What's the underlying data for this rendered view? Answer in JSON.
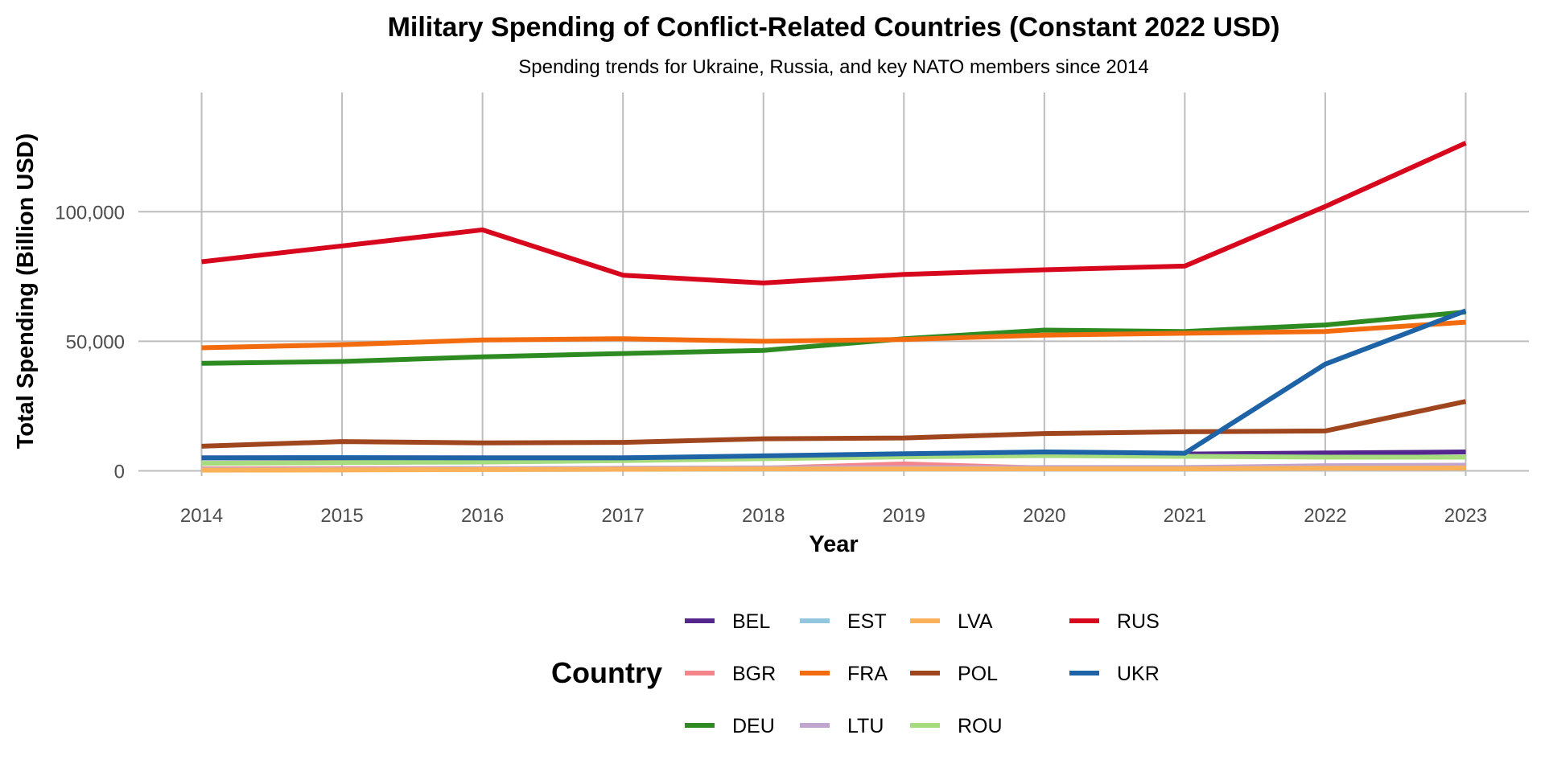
{
  "chart_data": {
    "type": "line",
    "title": "Military Spending of Conflict-Related Countries (Constant 2022 USD)",
    "subtitle": "Spending trends for Ukraine, Russia, and key NATO members since 2014",
    "xlabel": "Year",
    "ylabel": "Total Spending (Billion USD)",
    "x": [
      2014,
      2015,
      2016,
      2017,
      2018,
      2019,
      2020,
      2021,
      2022,
      2023
    ],
    "x_ticks": [
      "2014",
      "2015",
      "2016",
      "2017",
      "2018",
      "2019",
      "2020",
      "2021",
      "2022",
      "2023"
    ],
    "y_ticks": [
      {
        "value": 0,
        "label": "0"
      },
      {
        "value": 50000,
        "label": "50,000"
      },
      {
        "value": 100000,
        "label": "100,000"
      }
    ],
    "ylim": [
      -2000,
      146000
    ],
    "xlim": [
      2013.55,
      2023.45
    ],
    "grid": true,
    "legend_title": "Country",
    "legend_position": "bottom",
    "series": [
      {
        "name": "BEL",
        "color": "#54278F",
        "values": [
          5000,
          5000,
          5000,
          5000,
          5300,
          5800,
          6200,
          6500,
          6900,
          7300
        ]
      },
      {
        "name": "BGR",
        "color": "#F4868B",
        "values": [
          800,
          850,
          850,
          900,
          1000,
          2700,
          1100,
          1100,
          1200,
          1400
        ]
      },
      {
        "name": "DEU",
        "color": "#2E8B22",
        "values": [
          41500,
          42200,
          44000,
          45300,
          46500,
          51000,
          54300,
          53800,
          56300,
          61300
        ]
      },
      {
        "name": "EST",
        "color": "#92C5DE",
        "values": [
          500,
          550,
          550,
          600,
          650,
          700,
          750,
          750,
          1000,
          1100
        ]
      },
      {
        "name": "FRA",
        "color": "#F26B0F",
        "values": [
          47500,
          48700,
          50500,
          51000,
          50000,
          50700,
          52400,
          53100,
          53800,
          57400
        ]
      },
      {
        "name": "LTU",
        "color": "#C2A5CF",
        "values": [
          400,
          600,
          800,
          1000,
          1150,
          1200,
          1300,
          1300,
          2000,
          2200
        ]
      },
      {
        "name": "LVA",
        "color": "#F9B25A",
        "values": [
          300,
          350,
          500,
          650,
          750,
          750,
          800,
          800,
          1000,
          1100
        ]
      },
      {
        "name": "POL",
        "color": "#A0461F",
        "values": [
          9500,
          11300,
          10800,
          11000,
          12400,
          12700,
          14400,
          15100,
          15400,
          26800
        ]
      },
      {
        "name": "ROU",
        "color": "#A6DB7E",
        "values": [
          2900,
          3200,
          3400,
          4000,
          4700,
          5400,
          5900,
          5600,
          5300,
          5300
        ]
      },
      {
        "name": "RUS",
        "color": "#D7081E",
        "values": [
          80700,
          86800,
          93000,
          75500,
          72500,
          75800,
          77600,
          79000,
          102000,
          126500
        ]
      },
      {
        "name": "UKR",
        "color": "#1F63A7",
        "values": [
          5000,
          5100,
          5000,
          5000,
          5800,
          6600,
          7300,
          6800,
          41200,
          61800
        ]
      }
    ],
    "legend_layout": [
      [
        "BEL",
        "EST",
        "LVA",
        "RUS"
      ],
      [
        "BGR",
        "FRA",
        "POL",
        "UKR"
      ],
      [
        "DEU",
        "LTU",
        "ROU"
      ]
    ]
  }
}
